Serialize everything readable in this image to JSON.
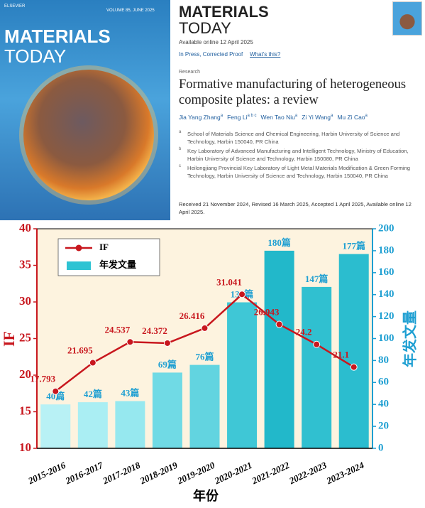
{
  "cover": {
    "publisher": "ELSEVIER",
    "volume": "VOLUME 85, JUNE 2025",
    "journal_line1": "MATERIALS",
    "journal_line2": "TODAY"
  },
  "article": {
    "journal_line1": "MATERIALS",
    "journal_line2": "TODAY",
    "available": "Available online 12 April 2025",
    "status": "In Press, Corrected Proof",
    "whats_this": "What's this?",
    "section": "Research",
    "title": "Formative manufacturing of heterogeneous composite plates: a review",
    "authors": [
      {
        "name": "Jia Yang Zhang",
        "sup": "a"
      },
      {
        "name": "Feng Li",
        "sup": "a b c"
      },
      {
        "name": "Wen Tao Niu",
        "sup": "a"
      },
      {
        "name": "Zi Yi Wang",
        "sup": "a"
      },
      {
        "name": "Mu Zi Cao",
        "sup": "a"
      }
    ],
    "affiliations": [
      {
        "mark": "a",
        "text": "School of Materials Science and Chemical Engineering, Harbin University of Science and Technology, Harbin 150040, PR China"
      },
      {
        "mark": "b",
        "text": "Key Laboratory of Advanced Manufacturing and Intelligent Technology, Ministry of Education, Harbin University of Science and Technology, Harbin 150080, PR China"
      },
      {
        "mark": "c",
        "text": "Heilongjiang Provincial Key Laboratory of Light Metal Materials Modification & Green Forming Technology, Harbin University of Science and Technology, Harbin 150040, PR China"
      }
    ],
    "history": "Received 21 November 2024, Revised 16 March 2025, Accepted 1 April 2025, Available online 12 April 2025."
  },
  "chart_data": {
    "type": "combo",
    "categories": [
      "2015-2016",
      "2016-2017",
      "2017-2018",
      "2018-2019",
      "2019-2020",
      "2020-2021",
      "2021-2022",
      "2022-2023",
      "2023-2024"
    ],
    "series": [
      {
        "name": "IF",
        "type": "line",
        "color": "#c8171e",
        "values": [
          17.793,
          21.695,
          24.537,
          24.372,
          26.416,
          31.041,
          26.943,
          24.2,
          21.1
        ]
      },
      {
        "name": "年发文量",
        "type": "bar",
        "axis": "y2",
        "color": "#2ec3d3",
        "colors": [
          "#b8f1f5",
          "#aaeef3",
          "#96e8ef",
          "#70dae5",
          "#62d4e0",
          "#3fc7d6",
          "#22b8ca",
          "#30c0d0",
          "#2bbdcf"
        ],
        "values": [
          40,
          42,
          43,
          69,
          76,
          133,
          180,
          147,
          177
        ],
        "value_labels": [
          "40篇",
          "42篇",
          "43篇",
          "69篇",
          "76篇",
          "133篇",
          "180篇",
          "147篇",
          "177篇"
        ]
      }
    ],
    "ylabel": "IF",
    "y2label": "年发文量",
    "xlabel": "年份",
    "ylim": [
      10,
      40
    ],
    "yticks": [
      10,
      15,
      20,
      25,
      30,
      35,
      40
    ],
    "y2lim": [
      0,
      200
    ],
    "y2ticks": [
      0,
      20,
      40,
      60,
      80,
      100,
      120,
      140,
      160,
      180,
      200
    ],
    "legend": "upper left"
  }
}
